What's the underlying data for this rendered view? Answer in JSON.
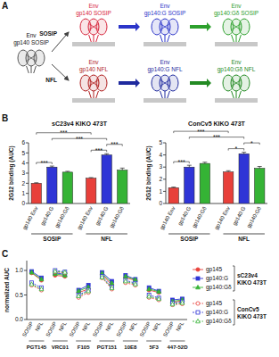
{
  "panel_labels": [
    "A",
    "B",
    "C"
  ],
  "diagram": {
    "origin": {
      "lines": [
        "Env",
        "gp140 SOSIP"
      ]
    },
    "rows": [
      {
        "arrow": "SOSIP",
        "trimers": [
          {
            "lines": [
              "Env",
              "gp140 SOSIP"
            ],
            "color": "#d7263d"
          },
          {
            "lines": [
              "Env",
              "gp140:G SOSIP"
            ],
            "color": "#2b35c9"
          },
          {
            "lines": [
              "Env",
              "gp140:Gδ SOSIP"
            ],
            "color": "#2ca02c"
          }
        ]
      },
      {
        "arrow": "NFL",
        "trimers": [
          {
            "lines": [
              "Env",
              "gp140 NFL"
            ],
            "color": "#b01e1e"
          },
          {
            "lines": [
              "Env",
              "gp140:G NFL"
            ],
            "color": "#1f2a9e"
          },
          {
            "lines": [
              "Env",
              "gp140:Gδ NFL"
            ],
            "color": "#238a23"
          }
        ]
      }
    ]
  },
  "chart_data": [
    {
      "type": "bar",
      "title": "sC23v4 KIKO 473T",
      "y_label": "2G12 binding (AUC)",
      "categories": [
        "gp140 Env",
        "gp140:G",
        "gp140:Gδ",
        "gp140 Env",
        "gp140:G",
        "gp140:Gδ"
      ],
      "groups": [
        {
          "label": "SOSIP",
          "span": [
            0,
            2
          ]
        },
        {
          "label": "NFL",
          "span": [
            3,
            5
          ]
        }
      ],
      "values": [
        2.0,
        3.6,
        3.1,
        2.5,
        4.8,
        3.3
      ],
      "errors": [
        0.05,
        0.1,
        0.08,
        0.06,
        0.12,
        0.2
      ],
      "colors": [
        "#e8403a",
        "#2f35d6",
        "#35b335",
        "#e8403a",
        "#2f35d6",
        "#35b335"
      ],
      "ylim": [
        0,
        6
      ],
      "yticks": [
        0,
        1,
        2,
        3,
        4,
        5,
        6
      ],
      "significance": [
        {
          "groups": [
            0,
            1
          ],
          "label": "***"
        },
        {
          "groups": [
            3,
            4
          ],
          "label": "***"
        },
        {
          "groups": [
            4,
            5
          ],
          "label": "***"
        },
        {
          "groups": [
            1,
            4
          ],
          "label": "***"
        },
        {
          "groups": [
            0,
            3
          ],
          "label": "***"
        }
      ]
    },
    {
      "type": "bar",
      "title": "ConCv5 KIKO 473T",
      "y_label": "2G12 binding (AUC)",
      "categories": [
        "gp140 Env",
        "gp140:G",
        "gp140:Gδ",
        "gp140 Env",
        "gp140:G",
        "gp140:Gδ"
      ],
      "groups": [
        {
          "label": "SOSIP",
          "span": [
            0,
            2
          ]
        },
        {
          "label": "NFL",
          "span": [
            3,
            5
          ]
        }
      ],
      "values": [
        1.3,
        3.0,
        3.3,
        2.6,
        4.1,
        2.9
      ],
      "errors": [
        0.05,
        0.15,
        0.1,
        0.1,
        0.12,
        0.15
      ],
      "colors": [
        "#e8403a",
        "#2f35d6",
        "#35b335",
        "#e8403a",
        "#2f35d6",
        "#35b335"
      ],
      "ylim": [
        0,
        5
      ],
      "yticks": [
        0,
        1,
        2,
        3,
        4,
        5
      ],
      "significance": [
        {
          "groups": [
            0,
            1
          ],
          "label": "***"
        },
        {
          "groups": [
            3,
            4
          ],
          "label": "*"
        },
        {
          "groups": [
            4,
            5
          ],
          "label": "*"
        },
        {
          "groups": [
            1,
            4
          ],
          "label": "***"
        },
        {
          "groups": [
            0,
            3
          ],
          "label": "***"
        }
      ]
    },
    {
      "type": "line",
      "y_label": "normalized AUC",
      "categories": [
        "SOSIP",
        "NFL",
        "SOSIP",
        "NFL",
        "SOSIP",
        "NFL",
        "SOSIP",
        "NFL",
        "SOSIP",
        "NFL",
        "SOSIP",
        "NFL",
        "SOSIP",
        "NFL"
      ],
      "groups": [
        {
          "label": "PGT145",
          "span": [
            0,
            1
          ]
        },
        {
          "label": "VRC01",
          "span": [
            2,
            3
          ]
        },
        {
          "label": "F105",
          "span": [
            4,
            5
          ]
        },
        {
          "label": "PGT151",
          "span": [
            6,
            7
          ]
        },
        {
          "label": "10E8",
          "span": [
            8,
            9
          ]
        },
        {
          "label": "5F3",
          "span": [
            10,
            11
          ]
        },
        {
          "label": "447-52D",
          "span": [
            12,
            13
          ]
        }
      ],
      "series": [
        {
          "name": "gp145",
          "color": "#e8403a",
          "marker": "circle",
          "line_style": "solid",
          "values": [
            0.95,
            0.8,
            0.9,
            0.88,
            0.55,
            0.62,
            0.92,
            0.7,
            0.85,
            0.8,
            0.6,
            0.55,
            0.35,
            0.38
          ]
        },
        {
          "name": "gp140:G",
          "color": "#2f35d6",
          "marker": "square",
          "line_style": "solid",
          "values": [
            0.98,
            0.85,
            0.95,
            0.92,
            0.6,
            0.7,
            0.96,
            0.78,
            0.9,
            0.82,
            0.65,
            0.58,
            0.4,
            0.42
          ]
        },
        {
          "name": "gp140:Gδ",
          "color": "#35b335",
          "marker": "triangle",
          "line_style": "solid",
          "values": [
            0.96,
            0.82,
            0.93,
            0.9,
            0.58,
            0.66,
            0.94,
            0.74,
            0.88,
            0.81,
            0.62,
            0.57,
            0.37,
            0.4
          ]
        },
        {
          "name": "gp145",
          "color": "#e8403a",
          "marker": "open-circle",
          "line_style": "dashed",
          "values": [
            0.7,
            0.6,
            0.97,
            0.95,
            0.45,
            0.55,
            0.85,
            0.62,
            0.75,
            0.7,
            0.45,
            0.4,
            0.3,
            0.32
          ]
        },
        {
          "name": "gp140:G",
          "color": "#2f35d6",
          "marker": "open-square",
          "line_style": "dashed",
          "values": [
            0.75,
            0.65,
            1.0,
            0.97,
            0.5,
            0.6,
            0.88,
            0.66,
            0.8,
            0.74,
            0.5,
            0.44,
            0.33,
            0.36
          ]
        },
        {
          "name": "gp140:Gδ",
          "color": "#35b335",
          "marker": "open-triangle",
          "line_style": "dashed",
          "values": [
            0.72,
            0.62,
            0.98,
            0.96,
            0.48,
            0.58,
            0.86,
            0.64,
            0.78,
            0.72,
            0.47,
            0.42,
            0.31,
            0.34
          ]
        }
      ],
      "legend": "right",
      "legend_groups": [
        {
          "label": "sC23v4 KIKO 473T",
          "span": [
            0,
            2
          ]
        },
        {
          "label": "ConCv5 KIKO 473T",
          "span": [
            3,
            5
          ]
        }
      ],
      "ylim": [
        0,
        1.2
      ],
      "yticks": [
        {
          "value": 0,
          "label": "0.0"
        },
        0.5,
        {
          "value": 1,
          "label": "1.0"
        }
      ]
    }
  ]
}
